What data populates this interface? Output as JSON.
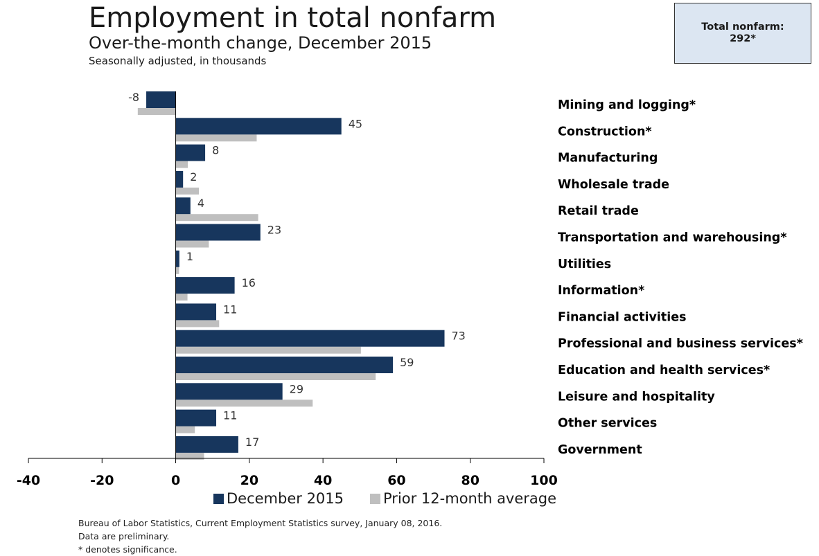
{
  "title": "Employment in total nonfarm",
  "subtitle": "Over-the-month change, December 2015",
  "unit_note": "Seasonally adjusted, in thousands",
  "total_box": {
    "label": "Total nonfarm:",
    "value": "292*"
  },
  "colors": {
    "current": "#17365d",
    "prior": "#bfbfbf",
    "axis": "#000000",
    "total_box_bg": "#dce6f2"
  },
  "chart_data": {
    "type": "bar",
    "orientation": "horizontal",
    "categories": [
      "Mining and logging*",
      "Construction*",
      "Manufacturing",
      "Wholesale trade",
      "Retail trade",
      "Transportation and warehousing*",
      "Utilities",
      "Information*",
      "Financial activities",
      "Professional and business services*",
      "Education and health services*",
      "Leisure and hospitality",
      "Other services",
      "Government"
    ],
    "series": [
      {
        "name": "December 2015",
        "values": [
          -8,
          45,
          8,
          2,
          4,
          23,
          1,
          16,
          11,
          73,
          59,
          29,
          11,
          17
        ],
        "data_labels": [
          "-8",
          "45",
          "8",
          "2",
          "4",
          "23",
          "1",
          "16",
          "11",
          "73",
          "59",
          "29",
          "11",
          "17"
        ]
      },
      {
        "name": "Prior 12-month average",
        "values": [
          -10.3,
          22,
          3.3,
          6.3,
          22.4,
          9,
          0.9,
          3.2,
          11.8,
          50.3,
          54.3,
          37.2,
          5.2,
          7.7
        ]
      }
    ],
    "xlim": [
      -40,
      100
    ],
    "xticks": [
      "-40",
      "-20",
      "0",
      "20",
      "40",
      "60",
      "80",
      "100"
    ],
    "grid": false,
    "legend_position": "bottom"
  },
  "footer": [
    "Bureau of Labor Statistics, Current Employment Statistics survey, January 08, 2016.",
    "Data are preliminary.",
    "* denotes significance."
  ]
}
